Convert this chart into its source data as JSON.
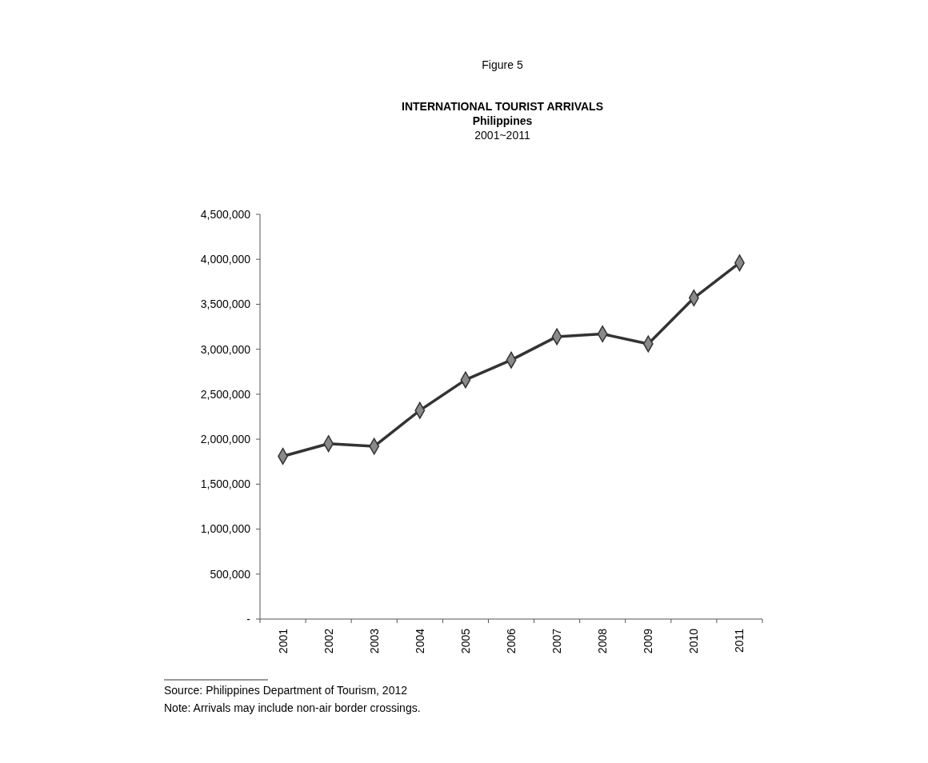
{
  "chart_data": {
    "type": "line",
    "title": "INTERNATIONAL TOURIST ARRIVALS",
    "subtitle": "Philippines",
    "annotations": [
      "Figure 5",
      "2001~2011",
      "Source:  Philippines Department of Tourism, 2012",
      "Note:  Arrivals may include non-air border crossings."
    ],
    "categories": [
      "2001",
      "2002",
      "2003",
      "2004",
      "2005",
      "2006",
      "2007",
      "2008",
      "2009",
      "2010",
      "2011"
    ],
    "series": [
      {
        "color": "#333333",
        "values": [
          1810000,
          1950000,
          1920000,
          2320000,
          2660000,
          2880000,
          3140000,
          3170000,
          3060000,
          3570000,
          3960000
        ]
      }
    ],
    "ylim": [
      0,
      4500000
    ],
    "yticks": [
      {
        "value": 0,
        "label": "-"
      },
      {
        "value": 500000,
        "label": "500,000"
      },
      {
        "value": 1000000,
        "label": "1,000,000"
      },
      {
        "value": 1500000,
        "label": "1,500,000"
      },
      {
        "value": 2000000,
        "label": "2,000,000"
      },
      {
        "value": 2500000,
        "label": "2,500,000"
      },
      {
        "value": 3000000,
        "label": "3,000,000"
      },
      {
        "value": 3500000,
        "label": "3,500,000"
      },
      {
        "value": 4000000,
        "label": "4,000,000"
      },
      {
        "value": 4500000,
        "label": "4,500,000"
      }
    ],
    "marker": "diamond"
  }
}
